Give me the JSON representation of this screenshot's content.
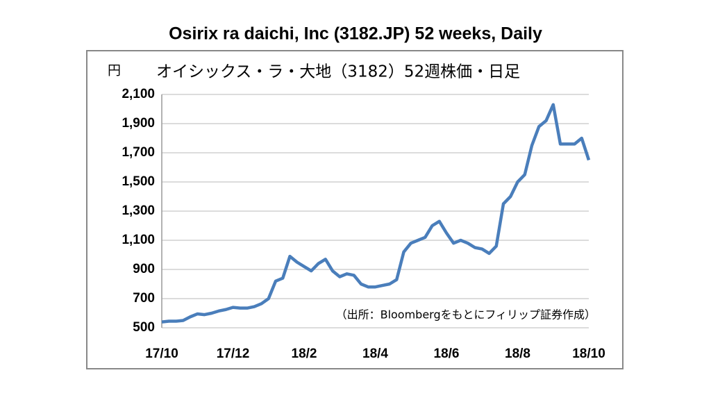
{
  "chart_data": {
    "type": "line",
    "title": "Osirix ra daichi, Inc (3182.JP) 52 weeks, Daily",
    "subtitle": "オイシックス・ラ・大地（3182）52週株価・日足",
    "y_unit": "円",
    "annotation": "（出所：Bloombergをもとにフィリップ証券作成）",
    "categories": [
      "17/10",
      null,
      null,
      null,
      null,
      null,
      null,
      null,
      null,
      null,
      "17/12",
      null,
      null,
      null,
      null,
      null,
      null,
      null,
      null,
      null,
      "18/2",
      null,
      null,
      null,
      null,
      null,
      null,
      null,
      null,
      null,
      "18/4",
      null,
      null,
      null,
      null,
      null,
      null,
      null,
      null,
      null,
      "18/6",
      null,
      null,
      null,
      null,
      null,
      null,
      null,
      null,
      null,
      "18/8",
      null,
      null,
      null,
      null,
      null,
      null,
      null,
      null,
      null,
      "18/10"
    ],
    "series": [
      {
        "color": "#4a7ebb",
        "values": [
          540,
          545,
          545,
          550,
          575,
          595,
          590,
          600,
          615,
          625,
          640,
          635,
          635,
          645,
          665,
          700,
          820,
          840,
          990,
          950,
          920,
          890,
          940,
          970,
          890,
          850,
          870,
          860,
          800,
          780,
          780,
          790,
          800,
          830,
          1020,
          1080,
          1100,
          1120,
          1200,
          1230,
          1150,
          1080,
          1100,
          1080,
          1050,
          1040,
          1010,
          1060,
          1350,
          1400,
          1500,
          1550,
          1750,
          1880,
          1920,
          2030,
          1760,
          1760,
          1760,
          1800,
          1650
        ]
      }
    ],
    "ylim": [
      500,
      2100
    ],
    "yticks": [
      500,
      700,
      900,
      {
        "value": 1100,
        "label": "1,100"
      },
      {
        "value": 1300,
        "label": "1,300"
      },
      {
        "value": 1500,
        "label": "1,500"
      },
      {
        "value": 1700,
        "label": "1,700"
      },
      {
        "value": 1900,
        "label": "1,900"
      },
      {
        "value": 2100,
        "label": "2,100"
      }
    ],
    "grid": true
  }
}
